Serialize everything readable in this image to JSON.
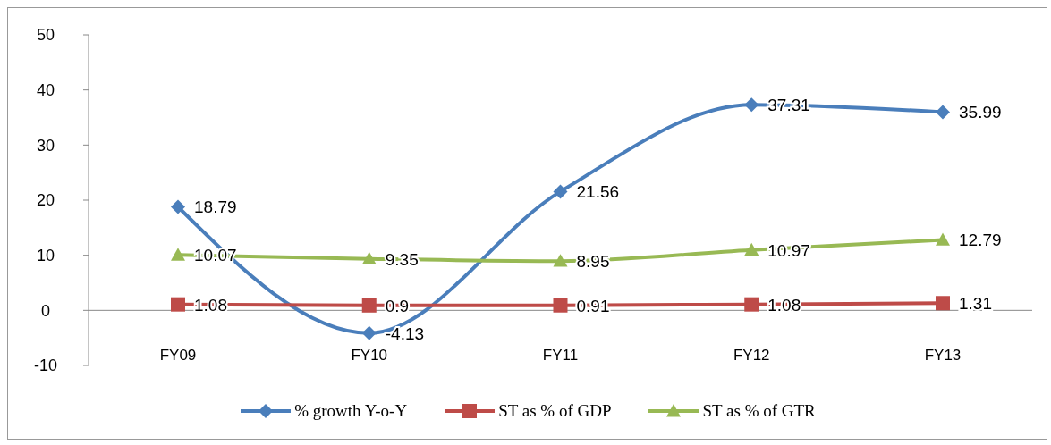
{
  "chart_data": {
    "type": "line",
    "categories": [
      "FY09",
      "FY10",
      "FY11",
      "FY12",
      "FY13"
    ],
    "series": [
      {
        "name": "% growth Y-o-Y",
        "color": "#4a7ebb",
        "marker": "diamond",
        "values": [
          18.79,
          -4.13,
          21.56,
          37.31,
          35.99
        ]
      },
      {
        "name": "ST as % of GDP",
        "color": "#be4b48",
        "marker": "square",
        "values": [
          1.08,
          0.9,
          0.91,
          1.08,
          1.31
        ]
      },
      {
        "name": "ST as % of GTR",
        "color": "#98b954",
        "marker": "triangle",
        "values": [
          10.07,
          9.35,
          8.95,
          10.97,
          12.79
        ]
      }
    ],
    "ylim": [
      -10,
      50
    ],
    "yticks": [
      -10,
      0,
      10,
      20,
      30,
      40,
      50
    ],
    "data_labels": true,
    "legend": "bottom",
    "grid": false,
    "line_style": "solid"
  }
}
